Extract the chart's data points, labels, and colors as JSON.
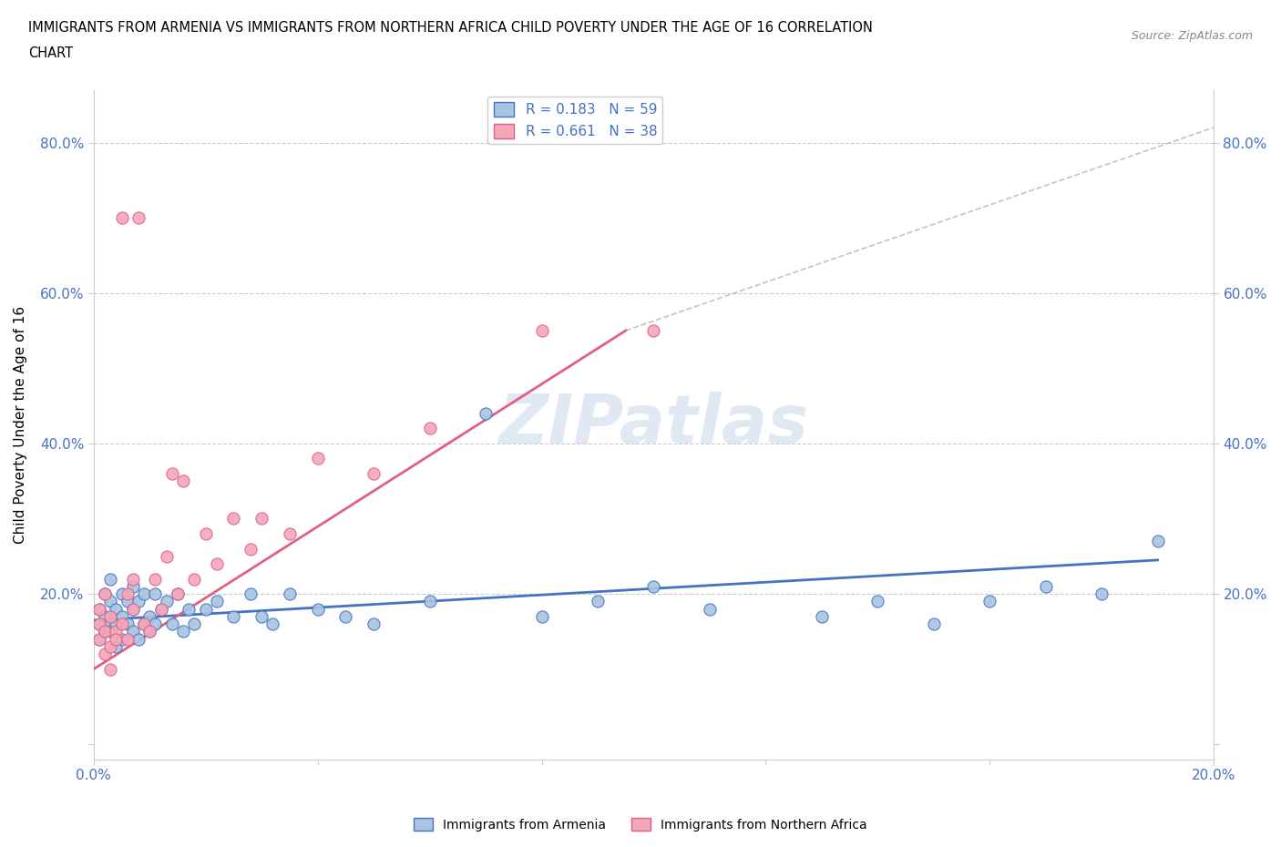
{
  "title_line1": "IMMIGRANTS FROM ARMENIA VS IMMIGRANTS FROM NORTHERN AFRICA CHILD POVERTY UNDER THE AGE OF 16 CORRELATION",
  "title_line2": "CHART",
  "source": "Source: ZipAtlas.com",
  "ylabel": "Child Poverty Under the Age of 16",
  "xlim": [
    0.0,
    0.2
  ],
  "ylim": [
    -0.02,
    0.87
  ],
  "xticks": [
    0.0,
    0.04,
    0.08,
    0.12,
    0.16,
    0.2
  ],
  "yticks": [
    0.0,
    0.2,
    0.4,
    0.6,
    0.8
  ],
  "ytick_labels": [
    "",
    "20.0%",
    "40.0%",
    "60.0%",
    "80.0%"
  ],
  "xtick_labels": [
    "0.0%",
    "",
    "",
    "",
    "",
    "20.0%"
  ],
  "r_armenia": 0.183,
  "n_armenia": 59,
  "r_n_africa": 0.661,
  "n_n_africa": 38,
  "color_armenia": "#a8c4e0",
  "color_n_africa": "#f4a7b9",
  "color_armenia_line": "#4472c4",
  "color_n_africa_line": "#e06080",
  "watermark": "ZIPatlas",
  "armenia_x": [
    0.001,
    0.001,
    0.001,
    0.002,
    0.002,
    0.002,
    0.003,
    0.003,
    0.003,
    0.003,
    0.004,
    0.004,
    0.004,
    0.005,
    0.005,
    0.005,
    0.006,
    0.006,
    0.007,
    0.007,
    0.007,
    0.008,
    0.008,
    0.009,
    0.009,
    0.01,
    0.01,
    0.011,
    0.011,
    0.012,
    0.013,
    0.014,
    0.015,
    0.016,
    0.017,
    0.018,
    0.02,
    0.022,
    0.025,
    0.028,
    0.03,
    0.032,
    0.035,
    0.04,
    0.045,
    0.05,
    0.06,
    0.07,
    0.08,
    0.09,
    0.1,
    0.11,
    0.13,
    0.14,
    0.15,
    0.16,
    0.17,
    0.18,
    0.19
  ],
  "armenia_y": [
    0.16,
    0.18,
    0.14,
    0.2,
    0.17,
    0.15,
    0.16,
    0.19,
    0.15,
    0.22,
    0.16,
    0.13,
    0.18,
    0.17,
    0.2,
    0.14,
    0.19,
    0.16,
    0.18,
    0.15,
    0.21,
    0.14,
    0.19,
    0.16,
    0.2,
    0.17,
    0.15,
    0.2,
    0.16,
    0.18,
    0.19,
    0.16,
    0.2,
    0.15,
    0.18,
    0.16,
    0.18,
    0.19,
    0.17,
    0.2,
    0.17,
    0.16,
    0.2,
    0.18,
    0.17,
    0.16,
    0.19,
    0.44,
    0.17,
    0.19,
    0.21,
    0.18,
    0.17,
    0.19,
    0.16,
    0.19,
    0.21,
    0.2,
    0.27
  ],
  "n_africa_x": [
    0.001,
    0.001,
    0.001,
    0.002,
    0.002,
    0.002,
    0.003,
    0.003,
    0.003,
    0.004,
    0.004,
    0.005,
    0.005,
    0.006,
    0.006,
    0.007,
    0.007,
    0.008,
    0.009,
    0.01,
    0.011,
    0.012,
    0.013,
    0.014,
    0.015,
    0.016,
    0.018,
    0.02,
    0.022,
    0.025,
    0.028,
    0.03,
    0.035,
    0.04,
    0.05,
    0.06,
    0.08,
    0.1
  ],
  "n_africa_y": [
    0.16,
    0.14,
    0.18,
    0.15,
    0.2,
    0.12,
    0.17,
    0.1,
    0.13,
    0.15,
    0.14,
    0.7,
    0.16,
    0.2,
    0.14,
    0.18,
    0.22,
    0.7,
    0.16,
    0.15,
    0.22,
    0.18,
    0.25,
    0.36,
    0.2,
    0.35,
    0.22,
    0.28,
    0.24,
    0.3,
    0.26,
    0.3,
    0.28,
    0.38,
    0.36,
    0.42,
    0.55,
    0.55
  ],
  "naf_line_x": [
    0.0,
    0.095
  ],
  "naf_line_y": [
    0.1,
    0.55
  ],
  "arm_line_x": [
    0.0,
    0.19
  ],
  "arm_line_y": [
    0.165,
    0.245
  ],
  "dash_line_x": [
    0.095,
    0.2
  ],
  "dash_line_y": [
    0.55,
    0.82
  ]
}
